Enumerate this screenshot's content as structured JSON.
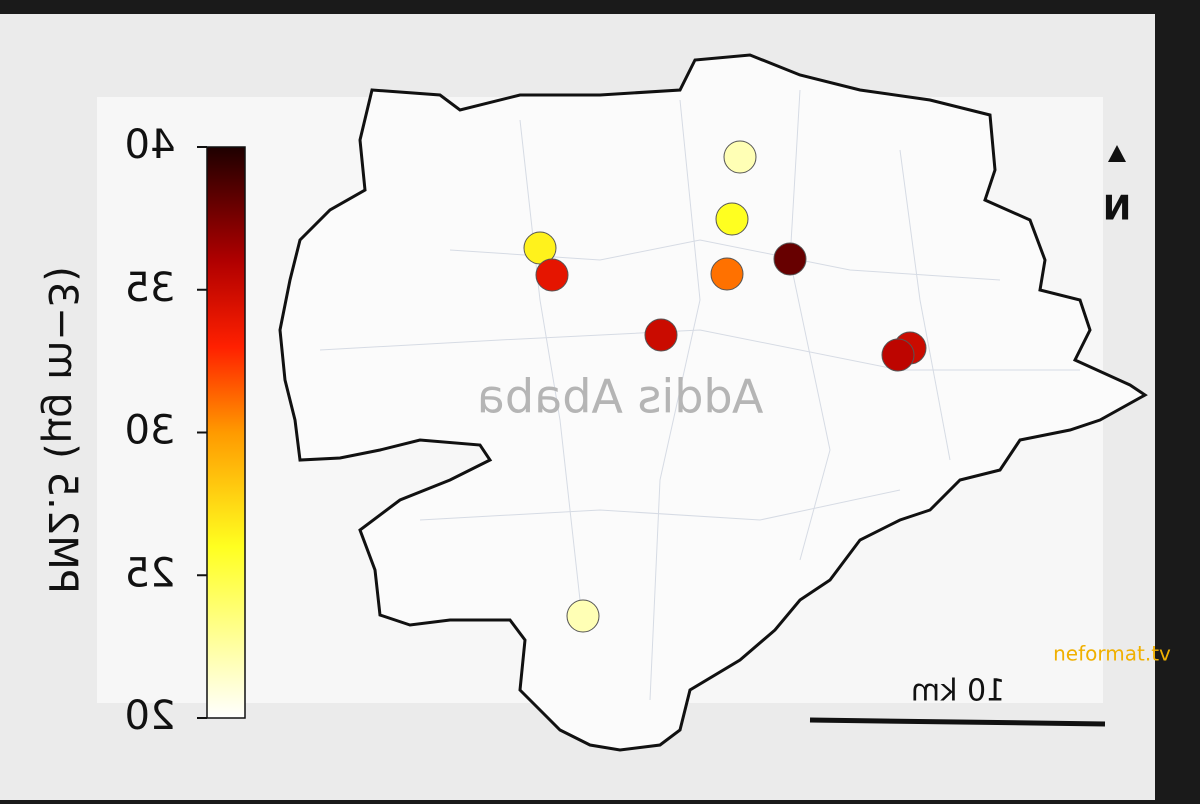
{
  "map": {
    "city_label": "Addis Ababa",
    "north_label": "N",
    "scale_label": "10 km",
    "watermark": "neformat.tv"
  },
  "colorbar": {
    "label": "PM2.5 (µg m−3)",
    "lim": [
      20,
      40
    ],
    "ticks": [
      20,
      25,
      30,
      35,
      40
    ]
  },
  "stations": {
    "values": [
      22,
      26,
      26.5,
      34,
      31,
      38,
      35,
      35,
      35.5,
      22
    ]
  }
}
